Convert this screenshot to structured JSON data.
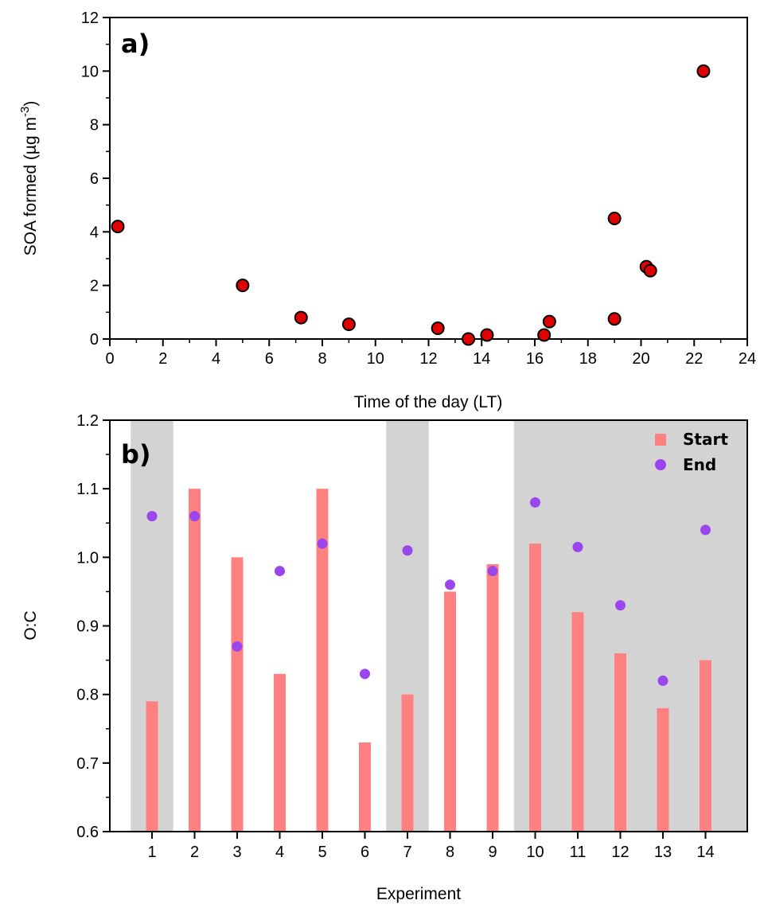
{
  "chart_data": [
    {
      "type": "scatter",
      "panel_label": "a)",
      "xlabel": "Time of the day (LT)",
      "ylabel_main": "SOA formed (µg m",
      "ylabel_sup": "-3",
      "ylabel_tail": ")",
      "xlim": [
        0,
        24
      ],
      "ylim": [
        0,
        12
      ],
      "xticks": [
        0,
        2,
        4,
        6,
        8,
        10,
        12,
        14,
        16,
        18,
        20,
        22,
        24
      ],
      "yticks": [
        0,
        2,
        4,
        6,
        8,
        10,
        12
      ],
      "marker_color": "#e00000",
      "points": [
        {
          "x": 0.3,
          "y": 4.2
        },
        {
          "x": 5.0,
          "y": 2.0
        },
        {
          "x": 7.2,
          "y": 0.8
        },
        {
          "x": 9.0,
          "y": 0.55
        },
        {
          "x": 12.35,
          "y": 0.4
        },
        {
          "x": 13.5,
          "y": 0.0
        },
        {
          "x": 14.2,
          "y": 0.15
        },
        {
          "x": 16.35,
          "y": 0.15
        },
        {
          "x": 16.55,
          "y": 0.65
        },
        {
          "x": 19.0,
          "y": 4.5
        },
        {
          "x": 19.0,
          "y": 0.75
        },
        {
          "x": 20.2,
          "y": 2.7
        },
        {
          "x": 20.35,
          "y": 2.55
        },
        {
          "x": 22.35,
          "y": 10.0
        }
      ]
    },
    {
      "type": "bar",
      "panel_label": "b)",
      "xlabel": "Experiment",
      "ylabel": "O:C",
      "ylim": [
        0.6,
        1.2
      ],
      "yticks": [
        "0.6",
        "0.7",
        "0.8",
        "0.9",
        "1.0",
        "1.1",
        "1.2"
      ],
      "categories": [
        "1",
        "2",
        "3",
        "4",
        "5",
        "6",
        "7",
        "8",
        "9",
        "10",
        "11",
        "12",
        "13",
        "14"
      ],
      "shaded_ranges": [
        [
          1,
          1
        ],
        [
          7,
          7
        ],
        [
          10,
          14
        ]
      ],
      "series": [
        {
          "name": "Start",
          "kind": "bar",
          "color": "#ff8080",
          "values": [
            0.79,
            1.1,
            1.0,
            0.83,
            1.1,
            0.73,
            0.8,
            0.95,
            0.99,
            1.02,
            0.92,
            0.86,
            0.78,
            0.85
          ]
        },
        {
          "name": "End",
          "kind": "points",
          "color": "#9b45ee",
          "values": [
            1.06,
            1.06,
            0.87,
            0.98,
            1.02,
            0.83,
            1.01,
            0.96,
            0.98,
            1.08,
            1.015,
            0.93,
            0.82,
            1.04
          ]
        }
      ],
      "legend_position": "top-right"
    }
  ]
}
